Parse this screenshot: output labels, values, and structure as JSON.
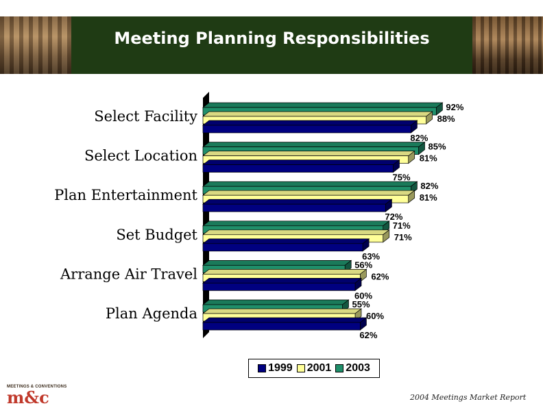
{
  "header": {
    "title": "Meeting Planning Responsibilities"
  },
  "chart_data": {
    "type": "bar",
    "orientation": "horizontal",
    "categories": [
      "Select Facility",
      "Select Location",
      "Plan Entertainment",
      "Set Budget",
      "Arrange Air Travel",
      "Plan Agenda"
    ],
    "series": [
      {
        "name": "1999",
        "color": "#000080",
        "values": [
          82,
          75,
          72,
          63,
          60,
          62
        ],
        "labels": [
          "82%",
          "75%",
          "72%",
          "63%",
          "60%",
          "62%"
        ]
      },
      {
        "name": "2001",
        "color": "#ffff99",
        "values": [
          88,
          81,
          81,
          71,
          62,
          60
        ],
        "labels": [
          "88%",
          "81%",
          "81%",
          "71%",
          "62%",
          "60%"
        ]
      },
      {
        "name": "2003",
        "color": "#1f8f6a",
        "values": [
          92,
          85,
          82,
          71,
          56,
          55
        ],
        "labels": [
          "92%",
          "85%",
          "82%",
          "71%",
          "56%",
          "55%"
        ]
      }
    ],
    "xlim": [
      0,
      100
    ],
    "grid": false,
    "legend_position": "bottom"
  },
  "logo": {
    "top_text": "MEETINGS & CONVENTIONS",
    "main_text": "m&c"
  },
  "footer": {
    "text": "2004 Meetings Market Report"
  }
}
